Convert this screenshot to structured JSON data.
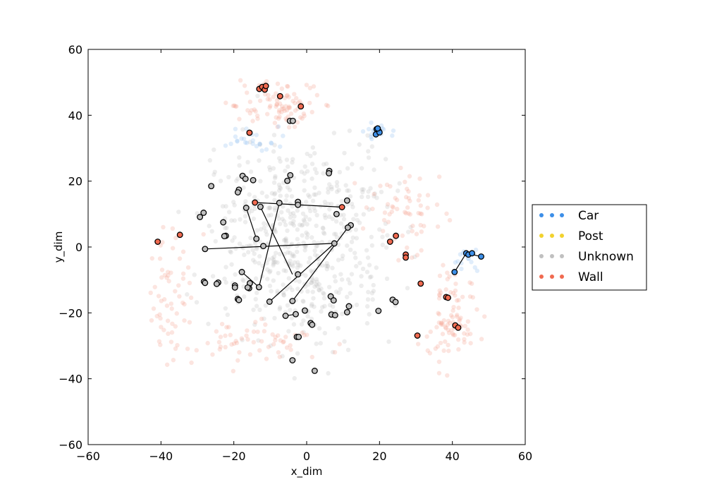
{
  "chart_data": {
    "type": "scatter",
    "title": "",
    "xlabel": "x_dim",
    "ylabel": "y_dim",
    "xlim": [
      -60,
      60
    ],
    "ylim": [
      -60,
      60
    ],
    "xticks": [
      -60,
      -40,
      -20,
      0,
      20,
      40,
      60
    ],
    "yticks": [
      -60,
      -40,
      -20,
      0,
      20,
      40,
      60
    ],
    "grid": false,
    "legend_position": "right",
    "series": [
      {
        "name": "Car",
        "color": "#3d8fe8"
      },
      {
        "name": "Post",
        "color": "#f2d22e"
      },
      {
        "name": "Unknown",
        "color": "#c0c0c0"
      },
      {
        "name": "Wall",
        "color": "#f06a50"
      }
    ],
    "highlighted_points": [
      {
        "label": "Car",
        "points": [
          [
            19.2,
            35.8
          ],
          [
            19.8,
            35.2
          ],
          [
            19.0,
            34.2
          ],
          [
            20.0,
            34.8
          ],
          [
            19.5,
            36.0
          ],
          [
            43.8,
            -1.9
          ],
          [
            44.4,
            -2.3
          ],
          [
            45.4,
            -1.9
          ],
          [
            47.9,
            -2.9
          ],
          [
            40.6,
            -7.6
          ]
        ]
      },
      {
        "label": "Wall",
        "points": [
          [
            -13.0,
            48.0
          ],
          [
            -12.2,
            48.6
          ],
          [
            -11.5,
            47.8
          ],
          [
            -11.2,
            48.9
          ],
          [
            -7.3,
            45.8
          ],
          [
            -1.6,
            42.7
          ],
          [
            -15.7,
            34.7
          ],
          [
            -14.2,
            13.5
          ],
          [
            9.7,
            12.1
          ],
          [
            -34.8,
            3.7
          ],
          [
            -40.9,
            1.6
          ],
          [
            24.5,
            3.4
          ],
          [
            22.9,
            1.6
          ],
          [
            27.2,
            -2.3
          ],
          [
            27.2,
            -3.2
          ],
          [
            31.3,
            -11.1
          ],
          [
            38.3,
            -15.2
          ],
          [
            38.8,
            -15.4
          ],
          [
            40.8,
            -23.8
          ],
          [
            41.6,
            -24.5
          ],
          [
            30.4,
            -26.9
          ]
        ]
      },
      {
        "label": "Unknown",
        "points": [
          [
            -4.6,
            38.3
          ],
          [
            -3.8,
            38.3
          ],
          [
            -17.6,
            21.6
          ],
          [
            -16.8,
            20.7
          ],
          [
            -14.7,
            20.3
          ],
          [
            -4.5,
            21.8
          ],
          [
            -5.3,
            20.1
          ],
          [
            6.2,
            23.1
          ],
          [
            6.1,
            22.4
          ],
          [
            -26.2,
            18.5
          ],
          [
            -18.6,
            17.4
          ],
          [
            -18.9,
            16.6
          ],
          [
            11.1,
            14.1
          ],
          [
            -7.5,
            13.4
          ],
          [
            -2.4,
            13.7
          ],
          [
            -2.4,
            12.8
          ],
          [
            -16.6,
            11.9
          ],
          [
            -12.7,
            12.2
          ],
          [
            8.2,
            10.0
          ],
          [
            -28.3,
            10.4
          ],
          [
            -29.3,
            9.1
          ],
          [
            -22.9,
            7.5
          ],
          [
            12.1,
            6.6
          ],
          [
            11.3,
            5.9
          ],
          [
            -22.2,
            3.4
          ],
          [
            -22.6,
            3.3
          ],
          [
            -13.8,
            2.5
          ],
          [
            -11.9,
            0.3
          ],
          [
            7.6,
            1.1
          ],
          [
            -27.9,
            -0.6
          ],
          [
            -17.8,
            -7.6
          ],
          [
            -2.4,
            -8.3
          ],
          [
            -28.2,
            -10.5
          ],
          [
            -27.9,
            -10.9
          ],
          [
            -24.3,
            -10.8
          ],
          [
            -24.7,
            -11.2
          ],
          [
            -19.7,
            -11.7
          ],
          [
            -19.7,
            -12.3
          ],
          [
            -15.6,
            -11.0
          ],
          [
            -15.8,
            -12.5
          ],
          [
            -16.2,
            -12.3
          ],
          [
            -13.1,
            -12.2
          ],
          [
            -10.2,
            -16.6
          ],
          [
            -18.9,
            -15.8
          ],
          [
            -18.6,
            -16.1
          ],
          [
            -3.9,
            -16.4
          ],
          [
            6.6,
            -15.0
          ],
          [
            7.4,
            -16.2
          ],
          [
            23.6,
            -16.0
          ],
          [
            24.4,
            -16.7
          ],
          [
            19.7,
            -19.4
          ],
          [
            11.6,
            -18.0
          ],
          [
            11.1,
            -19.8
          ],
          [
            -0.5,
            -19.3
          ],
          [
            -3.0,
            -20.4
          ],
          [
            -5.8,
            -20.9
          ],
          [
            6.8,
            -20.5
          ],
          [
            7.8,
            -20.7
          ],
          [
            1.1,
            -23.1
          ],
          [
            1.5,
            -23.6
          ],
          [
            -2.7,
            -27.3
          ],
          [
            -2.2,
            -27.3
          ],
          [
            -3.9,
            -34.4
          ],
          [
            2.2,
            -37.6
          ]
        ]
      }
    ],
    "connections": [
      [
        [
          -14.2,
          13.5
        ],
        [
          9.7,
          12.1
        ]
      ],
      [
        [
          -16.6,
          11.9
        ],
        [
          -13.8,
          2.5
        ]
      ],
      [
        [
          -12.7,
          12.2
        ],
        [
          -3.9,
          -8.3
        ]
      ],
      [
        [
          -7.5,
          13.4
        ],
        [
          -13.1,
          -12.2
        ]
      ],
      [
        [
          -27.9,
          -0.6
        ],
        [
          7.6,
          1.1
        ]
      ],
      [
        [
          7.6,
          1.1
        ],
        [
          -10.2,
          -16.6
        ]
      ],
      [
        [
          -17.8,
          -7.6
        ],
        [
          -13.1,
          -12.2
        ]
      ],
      [
        [
          11.3,
          5.9
        ],
        [
          -3.9,
          -16.4
        ]
      ],
      [
        [
          -5.8,
          -20.9
        ],
        [
          -3.0,
          -20.4
        ]
      ],
      [
        [
          40.6,
          -7.6
        ],
        [
          43.8,
          -1.9
        ]
      ],
      [
        [
          43.8,
          -1.9
        ],
        [
          47.9,
          -2.9
        ]
      ]
    ]
  }
}
